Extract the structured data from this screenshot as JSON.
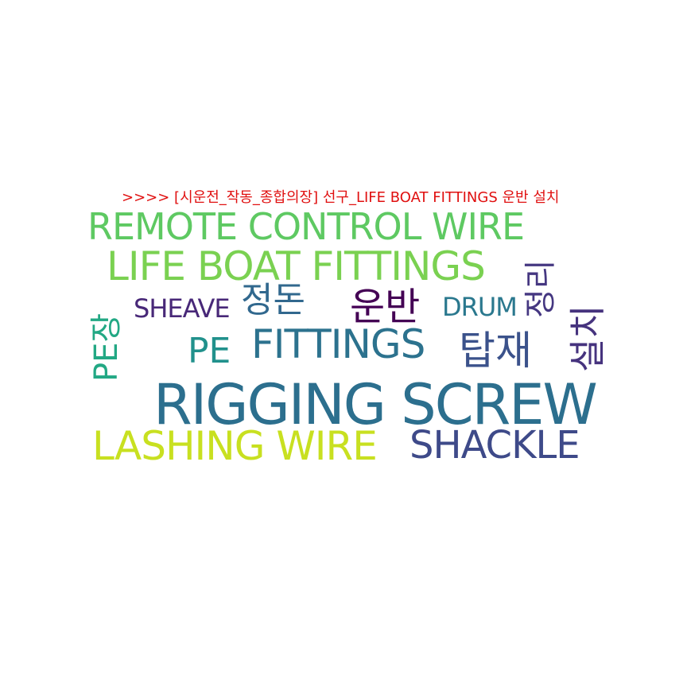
{
  "title": {
    "text": ">>>> [시운전_작동_종합의장] 선구_LIFE BOAT FITTINGS 운반 설치",
    "color": "#e01010"
  },
  "words": [
    {
      "id": "remote",
      "text": "REMOTE CONTROL WIRE",
      "color": "#5ec962",
      "orientation": "horizontal"
    },
    {
      "id": "life",
      "text": "LIFE BOAT FITTINGS",
      "color": "#7ad151",
      "orientation": "horizontal"
    },
    {
      "id": "sheave",
      "text": "SHEAVE",
      "color": "#482878",
      "orientation": "horizontal"
    },
    {
      "id": "jeongdon",
      "text": "정돈",
      "color": "#31688e",
      "orientation": "horizontal"
    },
    {
      "id": "unban",
      "text": "운반",
      "color": "#440154",
      "orientation": "horizontal"
    },
    {
      "id": "drum",
      "text": "DRUM",
      "color": "#2a788e",
      "orientation": "horizontal"
    },
    {
      "id": "pe",
      "text": "PE",
      "color": "#21918c",
      "orientation": "horizontal"
    },
    {
      "id": "fittings",
      "text": "FITTINGS",
      "color": "#2c728e",
      "orientation": "horizontal"
    },
    {
      "id": "tapjae",
      "text": "탑재",
      "color": "#3b528b",
      "orientation": "horizontal"
    },
    {
      "id": "rigging",
      "text": "RIGGING SCREW",
      "color": "#2c6f8e",
      "orientation": "horizontal"
    },
    {
      "id": "lashing",
      "text": "LASHING WIRE",
      "color": "#c8e020",
      "orientation": "horizontal"
    },
    {
      "id": "shackle",
      "text": "SHACKLE",
      "color": "#3e4a89",
      "orientation": "horizontal"
    },
    {
      "id": "pejang",
      "text": "PE장",
      "color": "#22a884",
      "orientation": "vertical"
    },
    {
      "id": "jeongri",
      "text": "정리",
      "color": "#453781",
      "orientation": "vertical"
    },
    {
      "id": "seolchi",
      "text": "설치",
      "color": "#46337e",
      "orientation": "vertical"
    }
  ]
}
